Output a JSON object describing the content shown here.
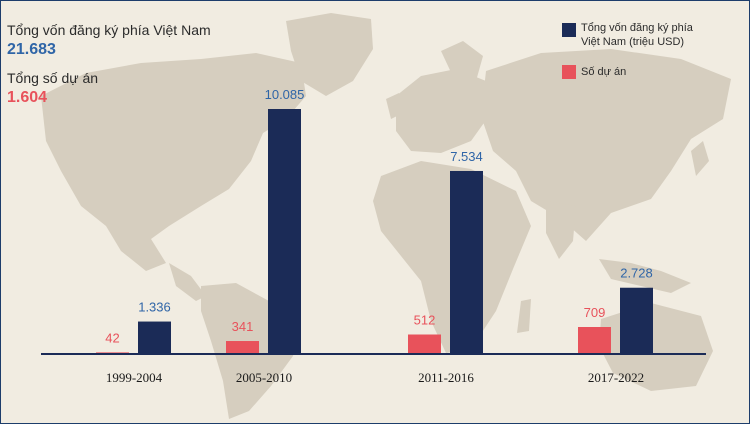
{
  "summary": {
    "capital_label": "Tổng vốn đăng ký phía Việt Nam",
    "capital_value": "21.683",
    "projects_label": "Tổng số dự án",
    "projects_value": "1.604"
  },
  "legend": {
    "capital_line1": "Tổng vốn đăng ký phía",
    "capital_line2": "Việt Nam (triệu USD)",
    "projects": "Số dự án"
  },
  "colors": {
    "capital": "#1b2b57",
    "projects": "#e8525b",
    "capital_text": "#2f65a7",
    "projects_text": "#e8525b",
    "map": "#d6cebf",
    "background": "#f1ece1"
  },
  "chart_data": {
    "type": "bar",
    "categories": [
      "1999-2004",
      "2005-2010",
      "2011-2016",
      "2017-2022"
    ],
    "series": [
      {
        "name": "Số dự án",
        "values": [
          42,
          341,
          512,
          709
        ],
        "labels": [
          "42",
          "341",
          "512",
          "709"
        ]
      },
      {
        "name": "Tổng vốn đăng ký phía Việt Nam (triệu USD)",
        "values": [
          1336,
          10085,
          7534,
          2728
        ],
        "labels": [
          "1.336",
          "10.085",
          "7.534",
          "2.728"
        ]
      }
    ]
  }
}
